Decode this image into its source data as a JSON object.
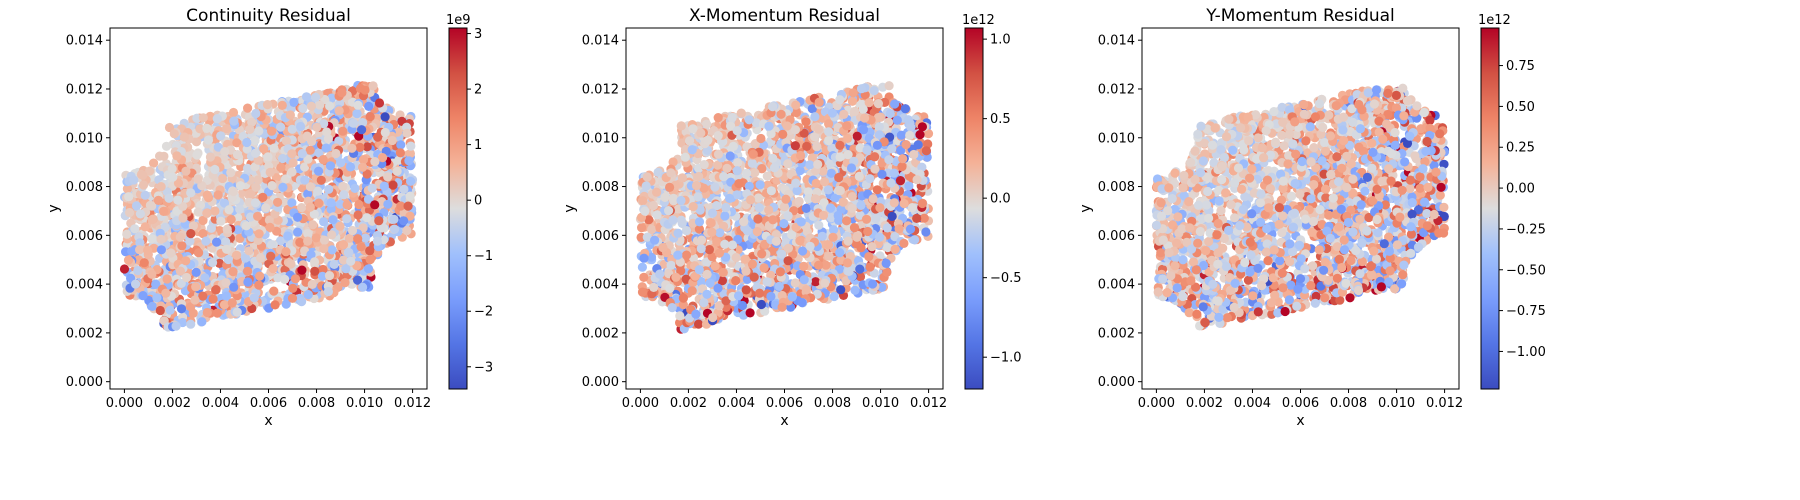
{
  "chart_data": [
    {
      "type": "scatter",
      "title": "Continuity Residual",
      "xlabel": "x",
      "ylabel": "y",
      "xlim": [
        -0.0006,
        0.0126
      ],
      "ylim": [
        -0.0003,
        0.0145
      ],
      "xticks": [
        "0.000",
        "0.002",
        "0.004",
        "0.006",
        "0.008",
        "0.010",
        "0.012"
      ],
      "yticks": [
        "0.000",
        "0.002",
        "0.004",
        "0.006",
        "0.008",
        "0.010",
        "0.012",
        "0.014"
      ],
      "colorbar": {
        "cmap": "coolwarm",
        "vmin": -3.4,
        "vmax": 3.1,
        "offset_text": "1e9",
        "ticks": [
          -3,
          -2,
          -1,
          0,
          1,
          2,
          3
        ],
        "tick_labels": [
          "−3",
          "−2",
          "−1",
          "0",
          "1",
          "2",
          "3"
        ]
      },
      "domain_note_shape": "tilted square with quarter-circle cutouts at corners",
      "color_pattern": {
        "seed": 11,
        "spread": 0.26,
        "edge_boost": 0.35
      },
      "grid": false
    },
    {
      "type": "scatter",
      "title": "X-Momentum Residual",
      "xlabel": "x",
      "ylabel": "y",
      "xlim": [
        -0.0006,
        0.0126
      ],
      "ylim": [
        -0.0003,
        0.0145
      ],
      "xticks": [
        "0.000",
        "0.002",
        "0.004",
        "0.006",
        "0.008",
        "0.010",
        "0.012"
      ],
      "yticks": [
        "0.000",
        "0.002",
        "0.004",
        "0.006",
        "0.008",
        "0.010",
        "0.012",
        "0.014"
      ],
      "colorbar": {
        "cmap": "coolwarm",
        "vmin": -1.2,
        "vmax": 1.07,
        "offset_text": "1e12",
        "ticks": [
          -1.0,
          -0.5,
          0.0,
          0.5,
          1.0
        ],
        "tick_labels": [
          "−1.0",
          "−0.5",
          "0.0",
          "0.5",
          "1.0"
        ]
      },
      "color_pattern": {
        "seed": 23,
        "spread": 0.3,
        "edge_boost": 0.45
      },
      "grid": false
    },
    {
      "type": "scatter",
      "title": "Y-Momentum Residual",
      "xlabel": "x",
      "ylabel": "y",
      "xlim": [
        -0.0006,
        0.0126
      ],
      "ylim": [
        -0.0003,
        0.0145
      ],
      "xticks": [
        "0.000",
        "0.002",
        "0.004",
        "0.006",
        "0.008",
        "0.010",
        "0.012"
      ],
      "yticks": [
        "0.000",
        "0.002",
        "0.004",
        "0.006",
        "0.008",
        "0.010",
        "0.012",
        "0.014"
      ],
      "colorbar": {
        "cmap": "coolwarm",
        "vmin": -1.23,
        "vmax": 0.98,
        "offset_text": "1e12",
        "ticks": [
          -1.0,
          -0.75,
          -0.5,
          -0.25,
          0.0,
          0.25,
          0.5,
          0.75
        ],
        "tick_labels": [
          "−1.00",
          "−0.75",
          "−0.50",
          "−0.25",
          "0.00",
          "0.25",
          "0.50",
          "0.75"
        ]
      },
      "color_pattern": {
        "seed": 37,
        "spread": 0.3,
        "edge_boost": 0.4
      },
      "grid": false
    }
  ]
}
